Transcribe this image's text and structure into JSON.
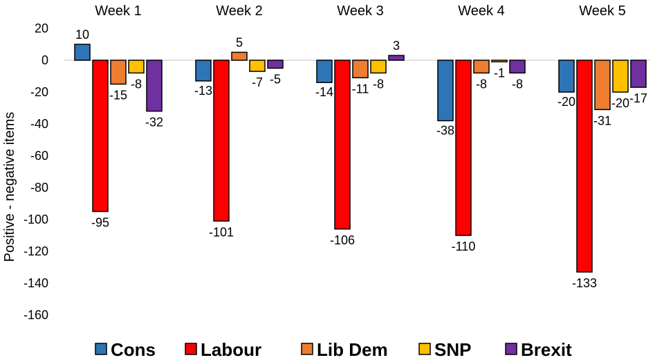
{
  "chart_data": {
    "type": "bar",
    "title": "",
    "xlabel": "",
    "ylabel": "Positive - negative items",
    "ylim": [
      -160,
      20
    ],
    "yticks": [
      20,
      0,
      -20,
      -40,
      -60,
      -80,
      -100,
      -120,
      -140,
      -160
    ],
    "grid": false,
    "category_position": "top",
    "legend_position": "bottom",
    "categories": [
      "Week 1",
      "Week 2",
      "Week 3",
      "Week 4",
      "Week 5"
    ],
    "series": [
      {
        "name": "Cons",
        "color": "#2E75B6",
        "values": [
          10,
          -13,
          -14,
          -38,
          -20
        ]
      },
      {
        "name": "Labour",
        "color": "#FF0000",
        "values": [
          -95,
          -101,
          -106,
          -110,
          -133
        ]
      },
      {
        "name": "Lib Dem",
        "color": "#ED7D31",
        "values": [
          -15,
          5,
          -11,
          -8,
          -31
        ]
      },
      {
        "name": "SNP",
        "color": "#FFC000",
        "values": [
          -8,
          -7,
          -8,
          -1,
          -20
        ]
      },
      {
        "name": "Brexit",
        "color": "#7030A0",
        "values": [
          -32,
          -5,
          3,
          -8,
          -17
        ]
      }
    ]
  }
}
